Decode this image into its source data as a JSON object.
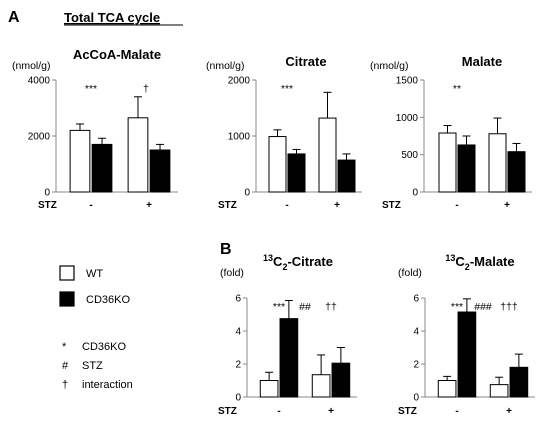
{
  "figure": {
    "panel_a_letter": "A",
    "panel_b_letter": "B",
    "panel_a_title": "Total TCA cycle",
    "stz_label": "STZ",
    "stz_minus": "-",
    "stz_plus": "+"
  },
  "legend": {
    "wt": "WT",
    "ko": "CD36KO",
    "sym_ko": "*",
    "sym_ko_label": "CD36KO",
    "sym_stz": "#",
    "sym_stz_label": "STZ",
    "sym_int": "†",
    "sym_int_label": "interaction"
  },
  "colors": {
    "wt_fill": "#ffffff",
    "ko_fill": "#000000",
    "axis": "#888888"
  },
  "chart_data": [
    {
      "type": "bar",
      "title": "AcCoA-Malate",
      "ylabel": "(nmol/g)",
      "ylim": [
        0,
        4000
      ],
      "yticks": [
        0,
        2000,
        4000
      ],
      "categories": [
        "WT -STZ",
        "CD36KO -STZ",
        "WT +STZ",
        "CD36KO +STZ"
      ],
      "values": [
        2200,
        1700,
        2650,
        1500
      ],
      "errors": [
        230,
        220,
        750,
        200
      ],
      "annotations": [
        {
          "text": "***",
          "group": 0
        },
        {
          "text": "†",
          "group": 1
        }
      ]
    },
    {
      "type": "bar",
      "title": "Citrate",
      "ylabel": "(nmol/g)",
      "ylim": [
        0,
        2000
      ],
      "yticks": [
        0,
        1000,
        2000
      ],
      "categories": [
        "WT -STZ",
        "CD36KO -STZ",
        "WT +STZ",
        "CD36KO +STZ"
      ],
      "values": [
        990,
        680,
        1320,
        570
      ],
      "errors": [
        120,
        80,
        460,
        110
      ],
      "annotations": [
        {
          "text": "***",
          "group": 0
        }
      ]
    },
    {
      "type": "bar",
      "title": "Malate",
      "ylabel": "(nmol/g)",
      "ylim": [
        0,
        1500
      ],
      "yticks": [
        0,
        500,
        1000,
        1500
      ],
      "categories": [
        "WT -STZ",
        "CD36KO -STZ",
        "WT +STZ",
        "CD36KO +STZ"
      ],
      "values": [
        790,
        630,
        780,
        540
      ],
      "errors": [
        100,
        120,
        210,
        110
      ],
      "annotations": [
        {
          "text": "**",
          "group": 0
        }
      ]
    },
    {
      "type": "bar",
      "title_sup": "13",
      "title_main": "C",
      "title_sub": "2",
      "title_rest": "-Citrate",
      "ylabel": "(fold)",
      "ylim": [
        0,
        6
      ],
      "yticks": [
        0,
        2,
        4,
        6
      ],
      "categories": [
        "WT -STZ",
        "CD36KO -STZ",
        "WT +STZ",
        "CD36KO +STZ"
      ],
      "values": [
        1.0,
        4.75,
        1.35,
        2.05
      ],
      "errors": [
        0.5,
        1.1,
        1.2,
        0.95
      ],
      "annotations": [
        {
          "text": "***",
          "group": 0
        },
        {
          "text": "##",
          "group": "mid"
        },
        {
          "text": "††",
          "group": 1
        }
      ]
    },
    {
      "type": "bar",
      "title_sup": "13",
      "title_main": "C",
      "title_sub": "2",
      "title_rest": "-Malate",
      "ylabel": "(fold)",
      "ylim": [
        0,
        6
      ],
      "yticks": [
        0,
        2,
        4,
        6
      ],
      "categories": [
        "WT -STZ",
        "CD36KO -STZ",
        "WT +STZ",
        "CD36KO +STZ"
      ],
      "values": [
        1.0,
        5.15,
        0.75,
        1.8
      ],
      "errors": [
        0.25,
        0.8,
        0.45,
        0.8
      ],
      "annotations": [
        {
          "text": "***",
          "group": 0
        },
        {
          "text": "###",
          "group": "mid"
        },
        {
          "text": "†††",
          "group": 1
        }
      ]
    }
  ]
}
